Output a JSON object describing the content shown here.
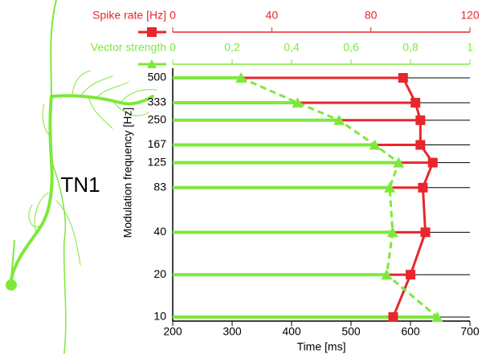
{
  "chart_data": {
    "type": "line",
    "annotation": "TN1",
    "x_label": "Time [ms]",
    "y_label": "Modulation frequency [Hz]",
    "xlim": [
      200,
      700
    ],
    "xticks": [
      200,
      300,
      400,
      500,
      600,
      700
    ],
    "ylim": [
      10,
      500
    ],
    "y_scale": "log",
    "yticks": [
      500,
      333,
      250,
      167,
      125,
      83,
      40,
      20,
      10
    ],
    "y": [
      500,
      333,
      250,
      167,
      125,
      83,
      40,
      20,
      10
    ],
    "rate_lim": [
      0,
      120
    ],
    "rate_ticks": [
      0,
      40,
      80,
      120
    ],
    "vs_lim": [
      0,
      1
    ],
    "vs_ticks": [
      0,
      {
        "value": 0.2,
        "label": "0,2"
      },
      {
        "value": 0.4,
        "label": "0,4"
      },
      {
        "value": 0.6,
        "label": "0,6"
      },
      {
        "value": 0.8,
        "label": "0,8"
      },
      1
    ],
    "series": [
      {
        "name": "Spike rate [Hz]",
        "color": "#e8262b",
        "axis": "rate",
        "values": [
          93,
          98,
          100,
          100,
          105,
          101,
          102,
          96,
          89
        ]
      },
      {
        "name": "Vector strength",
        "color": "#7ee83a",
        "axis": "vs",
        "values": [
          0.23,
          0.42,
          0.56,
          0.68,
          0.76,
          0.73,
          0.74,
          0.72,
          0.89
        ]
      }
    ]
  }
}
